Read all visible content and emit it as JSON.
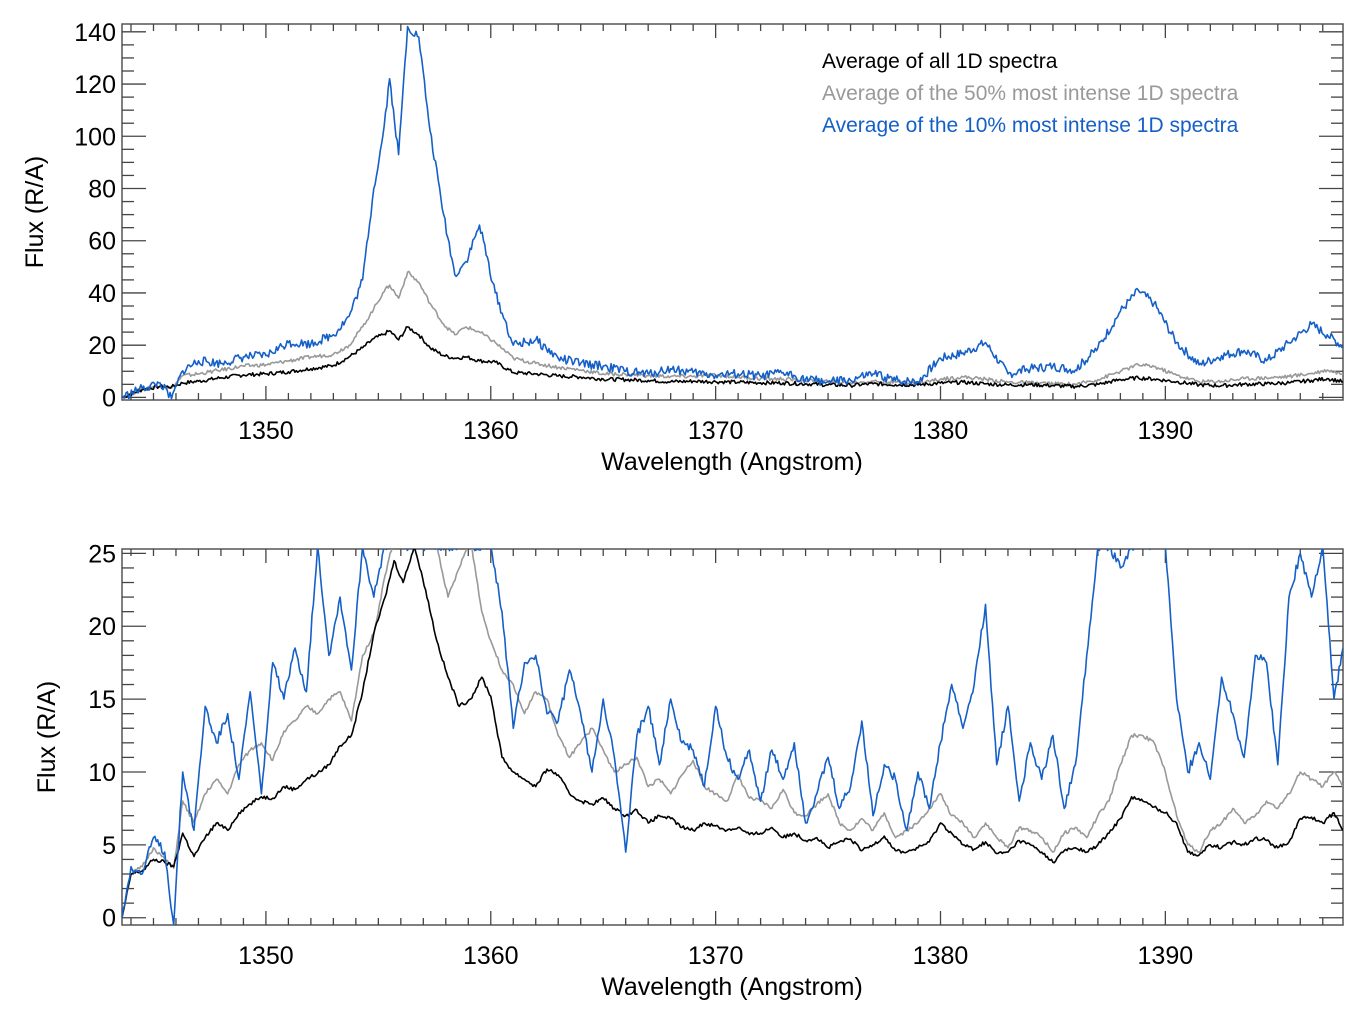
{
  "chart_data": [
    {
      "type": "line",
      "title": "",
      "xlabel": "Wavelength (Angstrom)",
      "ylabel": "Flux (R/A)",
      "xlim": [
        1343.6,
        1397.9
      ],
      "ylim": [
        -1,
        143
      ],
      "xticks": [
        1350,
        1360,
        1370,
        1380,
        1390
      ],
      "xtick_labels": [
        "1350",
        "1360",
        "1370",
        "1380",
        "1390"
      ],
      "x_minor_step": 1,
      "yticks": [
        0,
        20,
        40,
        60,
        80,
        100,
        120,
        140
      ],
      "ytick_labels": [
        "0",
        "20",
        "40",
        "60",
        "80",
        "100",
        "120",
        "140"
      ],
      "y_minor_step": 5,
      "grid": false,
      "legend": {
        "placement": "top-right",
        "entries": [
          {
            "label": "Average of all 1D spectra",
            "color": "#000000"
          },
          {
            "label": "Average of the 50% most intense 1D spectra",
            "color": "#999999"
          },
          {
            "label": "Average of the 10% most intense 1D spectra",
            "color": "#1560c8"
          }
        ]
      },
      "x": [
        1343.6,
        1344.5,
        1345.3,
        1345.8,
        1346.3,
        1347.0,
        1348.0,
        1349.0,
        1350.0,
        1351.0,
        1352.0,
        1353.0,
        1353.7,
        1354.3,
        1354.8,
        1355.2,
        1355.5,
        1355.9,
        1356.3,
        1356.8,
        1357.3,
        1357.9,
        1358.4,
        1358.9,
        1359.5,
        1360.2,
        1361.0,
        1362.0,
        1363.0,
        1364.0,
        1365.0,
        1366.0,
        1367.0,
        1368.0,
        1369.0,
        1370.0,
        1371.0,
        1372.0,
        1373.0,
        1374.0,
        1375.0,
        1376.0,
        1377.0,
        1378.0,
        1379.0,
        1380.0,
        1381.0,
        1382.0,
        1383.0,
        1384.0,
        1385.0,
        1386.0,
        1387.0,
        1388.0,
        1388.8,
        1389.5,
        1390.5,
        1391.5,
        1392.5,
        1393.5,
        1394.5,
        1395.5,
        1396.5,
        1397.2,
        1397.9
      ],
      "series": [
        {
          "name": "Average of all 1D spectra",
          "color": "#000000",
          "values": [
            0,
            3.0,
            4.2,
            4.0,
            5.5,
            6.2,
            7.5,
            8.6,
            9.0,
            9.8,
            11.0,
            12.2,
            15.5,
            19.0,
            22.5,
            24.0,
            25.5,
            22.0,
            27.0,
            24.0,
            19.0,
            16.0,
            15.0,
            15.5,
            14.0,
            13.5,
            9.5,
            9.0,
            8.2,
            7.8,
            7.0,
            6.8,
            6.5,
            6.0,
            6.2,
            6.0,
            5.8,
            5.6,
            5.5,
            5.2,
            4.8,
            4.6,
            5.2,
            4.9,
            4.8,
            5.5,
            5.8,
            5.2,
            4.8,
            4.9,
            4.5,
            4.2,
            5.0,
            6.8,
            7.5,
            7.0,
            6.0,
            4.8,
            4.5,
            5.0,
            5.2,
            5.6,
            6.5,
            7.2,
            6.0
          ]
        },
        {
          "name": "Average of the 50% most intense 1D spectra",
          "color": "#999999",
          "values": [
            0,
            3.2,
            4.6,
            3.5,
            8.3,
            9.0,
            10.5,
            12.0,
            12.5,
            14.0,
            15.5,
            16.5,
            20.0,
            27.0,
            34.0,
            40.0,
            43.0,
            38.0,
            48.0,
            44.0,
            36.0,
            28.0,
            24.0,
            27.0,
            25.0,
            21.0,
            15.0,
            13.0,
            11.5,
            10.5,
            9.0,
            8.8,
            8.3,
            8.0,
            8.0,
            8.5,
            7.8,
            7.2,
            7.0,
            6.5,
            6.0,
            5.6,
            6.2,
            5.8,
            5.5,
            7.0,
            7.8,
            7.0,
            5.8,
            5.6,
            5.2,
            5.0,
            6.8,
            10.0,
            12.5,
            11.8,
            8.5,
            6.0,
            6.2,
            7.2,
            7.5,
            8.0,
            9.2,
            10.5,
            9.0
          ]
        },
        {
          "name": "Average of the 10% most intense 1D spectra",
          "color": "#1560c8",
          "values": [
            0,
            3.5,
            5.5,
            -0.5,
            10.2,
            14.0,
            13.0,
            15.5,
            16.0,
            21.0,
            20.5,
            24.0,
            31.0,
            45.0,
            80.0,
            100.0,
            122.0,
            93.0,
            142.0,
            138.0,
            102.0,
            70.0,
            47.0,
            52.0,
            66.0,
            40.0,
            20.0,
            22.0,
            15.0,
            13.0,
            12.0,
            10.0,
            9.0,
            11.0,
            9.5,
            8.5,
            9.0,
            8.0,
            9.5,
            7.0,
            6.0,
            6.5,
            9.0,
            6.5,
            6.0,
            15.0,
            17.0,
            21.0,
            9.0,
            11.0,
            12.0,
            10.5,
            19.0,
            33.0,
            41.0,
            36.0,
            21.0,
            12.5,
            16.0,
            18.0,
            14.0,
            21.0,
            28.0,
            24.0,
            19.5
          ]
        }
      ]
    },
    {
      "type": "line",
      "title": "",
      "xlabel": "Wavelength (Angstrom)",
      "ylabel": "Flux (R/A)",
      "xlim": [
        1343.6,
        1397.9
      ],
      "ylim": [
        -0.5,
        25.3
      ],
      "xticks": [
        1350,
        1360,
        1370,
        1380,
        1390
      ],
      "xtick_labels": [
        "1350",
        "1360",
        "1370",
        "1380",
        "1390"
      ],
      "x_minor_step": 1,
      "yticks": [
        0,
        5,
        10,
        15,
        20,
        25
      ],
      "ytick_labels": [
        "0",
        "5",
        "10",
        "15",
        "20",
        "25"
      ],
      "y_minor_step": 1,
      "grid": false,
      "legend": null,
      "x": [
        1343.6,
        1344.0,
        1344.5,
        1345.0,
        1345.5,
        1345.9,
        1346.3,
        1346.8,
        1347.3,
        1347.8,
        1348.3,
        1348.8,
        1349.3,
        1349.8,
        1350.3,
        1350.8,
        1351.3,
        1351.8,
        1352.3,
        1352.8,
        1353.3,
        1353.8,
        1354.3,
        1354.8,
        1355.3,
        1355.7,
        1356.1,
        1356.6,
        1357.1,
        1357.6,
        1358.1,
        1358.6,
        1359.1,
        1359.6,
        1360.0,
        1360.5,
        1361.0,
        1361.5,
        1362.0,
        1362.5,
        1363.0,
        1363.5,
        1364.0,
        1364.5,
        1365.0,
        1365.5,
        1366.0,
        1366.5,
        1367.0,
        1367.5,
        1368.0,
        1368.5,
        1369.0,
        1369.5,
        1370.0,
        1370.5,
        1371.0,
        1371.5,
        1372.0,
        1372.5,
        1373.0,
        1373.5,
        1374.0,
        1374.5,
        1375.0,
        1375.5,
        1376.0,
        1376.5,
        1377.0,
        1377.5,
        1378.0,
        1378.5,
        1379.0,
        1379.5,
        1380.0,
        1380.5,
        1381.0,
        1381.5,
        1382.0,
        1382.5,
        1383.0,
        1383.5,
        1384.0,
        1384.5,
        1385.0,
        1385.5,
        1386.0,
        1386.5,
        1387.0,
        1387.5,
        1388.0,
        1388.5,
        1389.0,
        1389.5,
        1390.0,
        1390.5,
        1391.0,
        1391.5,
        1392.0,
        1392.5,
        1393.0,
        1393.5,
        1394.0,
        1394.5,
        1395.0,
        1395.5,
        1396.0,
        1396.5,
        1397.0,
        1397.5,
        1397.9
      ],
      "series": [
        {
          "name": "Average of all 1D spectra",
          "color": "#000000",
          "values": [
            0,
            3.0,
            3.2,
            4.0,
            3.8,
            3.5,
            5.8,
            4.2,
            5.5,
            6.5,
            6.0,
            7.2,
            7.8,
            8.3,
            8.2,
            9.0,
            8.8,
            9.5,
            9.9,
            10.5,
            11.8,
            12.5,
            15.5,
            19.5,
            22.0,
            24.5,
            23.0,
            25.5,
            22.5,
            19.0,
            16.5,
            14.5,
            15.0,
            16.5,
            15.2,
            11.0,
            10.0,
            9.5,
            9.0,
            10.2,
            9.8,
            8.5,
            8.0,
            7.8,
            8.2,
            7.5,
            7.0,
            7.4,
            6.5,
            7.0,
            6.8,
            6.2,
            6.0,
            6.5,
            6.3,
            6.0,
            6.2,
            5.7,
            5.8,
            6.2,
            5.5,
            5.8,
            5.3,
            5.5,
            4.8,
            5.2,
            5.4,
            4.6,
            5.0,
            5.6,
            4.6,
            4.5,
            4.8,
            5.2,
            6.5,
            5.8,
            5.0,
            4.7,
            5.2,
            4.4,
            4.5,
            5.3,
            5.0,
            4.5,
            3.8,
            4.6,
            4.8,
            4.5,
            5.0,
            5.8,
            6.8,
            8.3,
            8.0,
            7.6,
            7.2,
            6.5,
            4.5,
            4.3,
            5.0,
            4.8,
            5.2,
            5.0,
            5.5,
            5.3,
            4.8,
            5.2,
            6.8,
            6.9,
            6.5,
            7.2,
            6.0
          ]
        },
        {
          "name": "Average of the 50% most intense 1D spectra",
          "color": "#999999",
          "values": [
            0,
            3.0,
            3.5,
            4.8,
            4.0,
            3.4,
            8.0,
            6.5,
            8.5,
            9.5,
            8.5,
            10.5,
            11.5,
            12.0,
            10.8,
            12.8,
            13.5,
            14.5,
            14.0,
            15.0,
            15.5,
            13.5,
            18.0,
            19.5,
            23.5,
            26.0,
            27.0,
            28.0,
            25.5,
            25.5,
            22.0,
            24.0,
            26.0,
            21.0,
            19.0,
            17.0,
            16.0,
            14.0,
            15.5,
            15.0,
            12.5,
            11.0,
            12.0,
            13.0,
            11.5,
            10.0,
            10.5,
            11.0,
            9.0,
            9.5,
            8.5,
            9.8,
            10.8,
            9.0,
            8.5,
            8.0,
            9.8,
            8.2,
            8.0,
            7.5,
            8.8,
            7.2,
            7.0,
            7.8,
            8.5,
            6.5,
            6.0,
            6.8,
            6.0,
            7.2,
            5.5,
            6.0,
            6.5,
            7.5,
            8.5,
            7.0,
            6.5,
            5.5,
            6.5,
            5.5,
            4.8,
            6.2,
            6.0,
            5.5,
            4.5,
            5.8,
            6.2,
            5.5,
            7.0,
            8.0,
            10.5,
            12.5,
            12.5,
            12.0,
            10.0,
            7.0,
            5.0,
            4.5,
            6.0,
            6.5,
            7.5,
            6.5,
            7.0,
            8.0,
            7.5,
            8.5,
            10.0,
            9.5,
            9.0,
            10.0,
            9.0
          ]
        },
        {
          "name": "Average of the 10% most intense 1D spectra",
          "color": "#1560c8",
          "values": [
            0,
            3.5,
            3.0,
            5.5,
            4.5,
            -0.5,
            10.0,
            6.0,
            14.5,
            12.0,
            14.0,
            9.5,
            15.5,
            8.5,
            17.5,
            15.0,
            18.5,
            15.5,
            25.5,
            18.0,
            22.0,
            17.0,
            25.5,
            22.0,
            25.5,
            25.5,
            25.5,
            25.5,
            25.5,
            25.5,
            25.5,
            25.5,
            25.5,
            25.5,
            25.5,
            21.0,
            13.0,
            17.5,
            18.0,
            14.0,
            13.5,
            17.0,
            14.0,
            10.0,
            15.0,
            11.0,
            4.5,
            12.5,
            14.5,
            10.5,
            15.0,
            12.0,
            11.5,
            9.0,
            14.5,
            11.0,
            9.5,
            11.5,
            8.0,
            11.5,
            9.5,
            12.0,
            6.5,
            8.5,
            11.0,
            7.5,
            9.0,
            13.5,
            7.0,
            10.5,
            9.5,
            6.0,
            10.0,
            7.5,
            12.0,
            16.0,
            13.0,
            16.0,
            21.5,
            10.5,
            14.5,
            8.0,
            12.0,
            9.5,
            12.5,
            7.5,
            10.5,
            18.0,
            25.5,
            25.5,
            24.0,
            25.5,
            25.5,
            25.5,
            25.5,
            15.0,
            10.0,
            12.0,
            9.5,
            16.5,
            14.0,
            11.0,
            18.0,
            17.5,
            10.5,
            22.0,
            25.0,
            22.0,
            25.5,
            15.0,
            18.5
          ]
        }
      ]
    }
  ]
}
